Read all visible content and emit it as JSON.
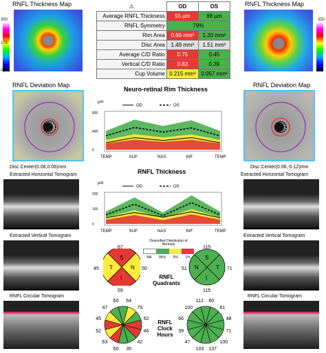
{
  "thickness_map": {
    "title_left": "RNFL Thickness Map",
    "title_right": "RNFL Thickness Map",
    "scale_top": "350",
    "scale_mid": "175",
    "scale_bottom": "0 µm"
  },
  "table": {
    "header": {
      "icon": "warning-icon",
      "od": "OD",
      "os": "OS"
    },
    "rows": [
      {
        "label": "Average RNFL Thickness",
        "od": "55 µm",
        "os": "88 µm",
        "od_color": "#e53935",
        "os_color": "#4caf50"
      },
      {
        "label": "RNFL Symmetry",
        "od": "79%",
        "os": "",
        "span": true,
        "od_color": "#4caf50"
      },
      {
        "label": "Rim Area",
        "od": "0.66 mm²",
        "os": "1.20 mm²",
        "od_color": "#e53935",
        "os_color": "#4caf50"
      },
      {
        "label": "Disc Area",
        "od": "1.49 mm²",
        "os": "1.51 mm²",
        "od_color": "#e0e0e0",
        "os_color": "#e0e0e0"
      },
      {
        "label": "Average C/D Ratio",
        "od": "0.75",
        "os": "0.45",
        "od_color": "#e53935",
        "os_color": "#4caf50"
      },
      {
        "label": "Vertical C/D Ratio",
        "od": "0.83",
        "os": "0.39",
        "od_color": "#e53935",
        "os_color": "#4caf50"
      },
      {
        "label": "Cup Volume",
        "od": "0.215 mm³",
        "os": "0.057 mm³",
        "od_color": "#ffeb3b",
        "os_color": "#4caf50"
      }
    ]
  },
  "deviation": {
    "title_left": "RNFL Deviation Map",
    "title_right": "RNFL Deviation Map",
    "disc_center_left": "Disc Center(0.06,0.06)mm",
    "disc_center_right": "Disc Center(0.06,-0.12)mm"
  },
  "tomograms": {
    "horizontal": "Extracted Horizontal Tomogram",
    "vertical": "Extracted Vertical Tomogram",
    "circular": "RNFL Circular Tomogram"
  },
  "rim_chart": {
    "title": "Neuro-retinal Rim Thickness",
    "unit": "µm",
    "legend_od": "OD",
    "legend_os": "OS",
    "y_ticks": [
      "800",
      "400",
      "0"
    ],
    "x_ticks": [
      "TEMP",
      "SUP",
      "NAS",
      "INF",
      "TEMP"
    ]
  },
  "rnfl_chart": {
    "title": "RNFL Thickness",
    "unit": "µm",
    "legend_od": "OD",
    "legend_os": "OS",
    "y_ticks": [
      "200",
      "100",
      "0"
    ],
    "x_ticks": [
      "TEMP",
      "SUP",
      "NAS",
      "INF",
      "TEMP"
    ]
  },
  "normals_legend": {
    "title": "Diversified Distribution of Normals",
    "items": [
      "NA",
      "95%",
      "5%",
      "1%"
    ]
  },
  "quadrants": {
    "title": "RNFL Quadrants",
    "od": {
      "s": "67",
      "n": "50",
      "i": "59",
      "t": "45"
    },
    "os": {
      "s": "115",
      "n": "51",
      "i": "115",
      "t": "71"
    }
  },
  "clock": {
    "title": "RNFL Clock Hours",
    "od": [
      "64",
      "75",
      "62",
      "46",
      "42",
      "35",
      "60",
      "63",
      "52",
      "45",
      "47",
      "60"
    ],
    "os": [
      "112",
      "100",
      "66",
      "39",
      "47",
      "103",
      "137",
      "100",
      "71",
      "48",
      "81",
      "80"
    ]
  },
  "chart_data": [
    {
      "type": "line",
      "title": "Neuro-retinal Rim Thickness",
      "ylabel": "µm",
      "categories": [
        "TEMP",
        "SUP",
        "NAS",
        "INF",
        "TEMP"
      ],
      "ylim": [
        0,
        800
      ],
      "series": [
        {
          "name": "OD",
          "values": [
            150,
            260,
            200,
            260,
            150
          ]
        },
        {
          "name": "OS",
          "values": [
            300,
            480,
            380,
            470,
            300
          ]
        }
      ]
    },
    {
      "type": "line",
      "title": "RNFL Thickness",
      "ylabel": "µm",
      "categories": [
        "TEMP",
        "SUP",
        "NAS",
        "INF",
        "TEMP"
      ],
      "ylim": [
        0,
        200
      ],
      "series": [
        {
          "name": "OD",
          "values": [
            40,
            75,
            45,
            80,
            40
          ]
        },
        {
          "name": "OS",
          "values": [
            60,
            130,
            55,
            140,
            60
          ]
        }
      ]
    }
  ]
}
